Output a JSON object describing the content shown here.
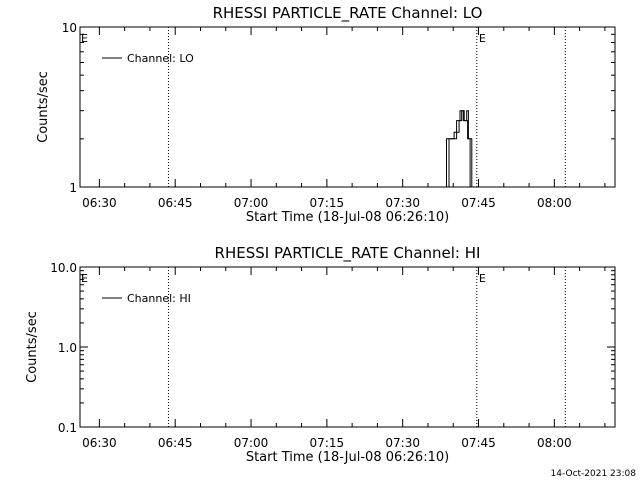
{
  "chart_data": [
    {
      "type": "line",
      "title": "RHESSI PARTICLE_RATE Channel: LO",
      "xlabel": "Start Time (18-Jul-08 06:26:10)",
      "ylabel": "Counts/sec",
      "y_scale": "log",
      "ylim": [
        1,
        10
      ],
      "y_ticks": [
        1,
        10
      ],
      "y_tick_labels": [
        "1",
        "10"
      ],
      "x_range": [
        "06:26:10",
        "08:12:00"
      ],
      "x_tick_labels": [
        "06:30",
        "06:45",
        "07:00",
        "07:15",
        "07:30",
        "07:45",
        "08:00"
      ],
      "x_tick_times": [
        "06:30",
        "06:45",
        "07:00",
        "07:15",
        "07:30",
        "07:45",
        "08:00"
      ],
      "vlines": [
        {
          "time": "06:43:40",
          "label": ""
        },
        {
          "time": "07:44:40",
          "label": "E"
        },
        {
          "time": "08:02:10",
          "label": ""
        }
      ],
      "left_marker": "E",
      "legend": {
        "label": "Channel: LO",
        "position": "top-left"
      },
      "series": [
        {
          "name": "Channel: LO",
          "points": [
            [
              "07:38:40",
              1
            ],
            [
              "07:38:40",
              2
            ],
            [
              "07:40:10",
              2
            ],
            [
              "07:40:10",
              2.2
            ],
            [
              "07:41:10",
              2.2
            ],
            [
              "07:41:10",
              2.6
            ],
            [
              "07:41:40",
              2.6
            ],
            [
              "07:41:40",
              3
            ],
            [
              "07:42:10",
              3
            ],
            [
              "07:42:10",
              2.6
            ],
            [
              "07:42:40",
              2.6
            ],
            [
              "07:42:40",
              3
            ],
            [
              "07:43:00",
              3
            ],
            [
              "07:43:00",
              2
            ],
            [
              "07:43:40",
              2
            ],
            [
              "07:43:40",
              1
            ]
          ]
        },
        {
          "name": "",
          "points": [
            [
              "07:39:10",
              1
            ],
            [
              "07:39:10",
              2
            ],
            [
              "07:40:40",
              2
            ],
            [
              "07:40:40",
              2.6
            ],
            [
              "07:41:20",
              2.6
            ],
            [
              "07:41:20",
              3
            ],
            [
              "07:42:00",
              3
            ],
            [
              "07:42:00",
              2.6
            ],
            [
              "07:42:50",
              2.6
            ],
            [
              "07:42:50",
              2
            ],
            [
              "07:43:20",
              2
            ],
            [
              "07:43:20",
              1
            ]
          ]
        }
      ]
    },
    {
      "type": "line",
      "title": "RHESSI PARTICLE_RATE Channel: HI",
      "xlabel": "Start Time (18-Jul-08 06:26:10)",
      "ylabel": "Counts/sec",
      "y_scale": "log",
      "ylim": [
        0.1,
        10
      ],
      "y_ticks": [
        0.1,
        1,
        10
      ],
      "y_tick_labels": [
        "0.1",
        "1.0",
        "10.0"
      ],
      "x_range": [
        "06:26:10",
        "08:12:00"
      ],
      "x_tick_labels": [
        "06:30",
        "06:45",
        "07:00",
        "07:15",
        "07:30",
        "07:45",
        "08:00"
      ],
      "x_tick_times": [
        "06:30",
        "06:45",
        "07:00",
        "07:15",
        "07:30",
        "07:45",
        "08:00"
      ],
      "vlines": [
        {
          "time": "06:43:40",
          "label": ""
        },
        {
          "time": "07:44:40",
          "label": "E"
        },
        {
          "time": "08:02:10",
          "label": ""
        }
      ],
      "left_marker": "E",
      "legend": {
        "label": "Channel: HI",
        "position": "top-left"
      },
      "series": []
    }
  ],
  "footer": {
    "timestamp": "14-Oct-2021 23:08"
  }
}
